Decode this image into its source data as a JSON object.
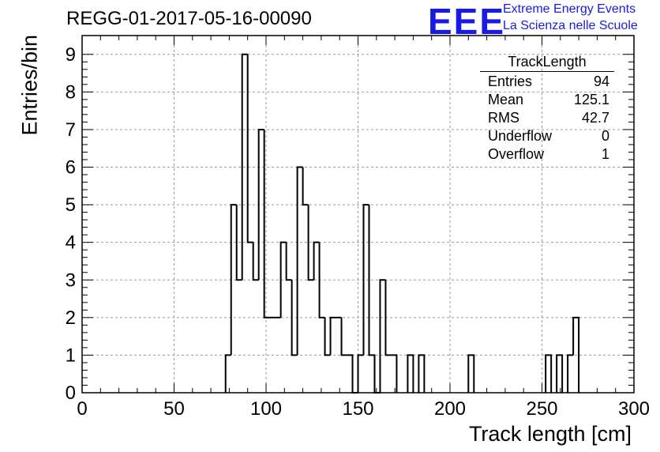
{
  "header": {
    "title": "REGG-01-2017-05-16-00090",
    "logo_text": "EEE",
    "logo_line1": "Extreme Energy Events",
    "logo_line2": "La Scienza nelle Scuole",
    "logo_color": "#1a1ae6"
  },
  "stats": {
    "title": "TrackLength",
    "rows": [
      {
        "label": "Entries",
        "value": "94"
      },
      {
        "label": "Mean",
        "value": "125.1"
      },
      {
        "label": "RMS",
        "value": "42.7"
      },
      {
        "label": "Underflow",
        "value": "0"
      },
      {
        "label": "Overflow",
        "value": "1"
      }
    ]
  },
  "chart_data": {
    "type": "histogram",
    "title": "REGG-01-2017-05-16-00090",
    "xlabel": "Track length [cm]",
    "ylabel": "Entries/bin",
    "xlim": [
      0,
      300
    ],
    "ylim": [
      0,
      9.5
    ],
    "bin_width": 3,
    "grid": true,
    "xticks": [
      0,
      50,
      100,
      150,
      200,
      250,
      300
    ],
    "yticks": [
      0,
      1,
      2,
      3,
      4,
      5,
      6,
      7,
      8,
      9
    ],
    "bins": [
      {
        "x0": 78,
        "count": 1
      },
      {
        "x0": 81,
        "count": 5
      },
      {
        "x0": 84,
        "count": 3
      },
      {
        "x0": 87,
        "count": 9
      },
      {
        "x0": 90,
        "count": 4
      },
      {
        "x0": 93,
        "count": 3
      },
      {
        "x0": 96,
        "count": 7
      },
      {
        "x0": 99,
        "count": 2
      },
      {
        "x0": 102,
        "count": 2
      },
      {
        "x0": 105,
        "count": 2
      },
      {
        "x0": 108,
        "count": 4
      },
      {
        "x0": 111,
        "count": 3
      },
      {
        "x0": 114,
        "count": 1
      },
      {
        "x0": 117,
        "count": 6
      },
      {
        "x0": 120,
        "count": 5
      },
      {
        "x0": 123,
        "count": 3
      },
      {
        "x0": 126,
        "count": 4
      },
      {
        "x0": 129,
        "count": 2
      },
      {
        "x0": 132,
        "count": 1
      },
      {
        "x0": 135,
        "count": 2
      },
      {
        "x0": 138,
        "count": 2
      },
      {
        "x0": 141,
        "count": 1
      },
      {
        "x0": 144,
        "count": 1
      },
      {
        "x0": 147,
        "count": 0
      },
      {
        "x0": 150,
        "count": 1
      },
      {
        "x0": 153,
        "count": 5
      },
      {
        "x0": 156,
        "count": 1
      },
      {
        "x0": 159,
        "count": 0
      },
      {
        "x0": 162,
        "count": 3
      },
      {
        "x0": 165,
        "count": 1
      },
      {
        "x0": 168,
        "count": 1
      },
      {
        "x0": 177,
        "count": 1
      },
      {
        "x0": 183,
        "count": 1
      },
      {
        "x0": 210,
        "count": 1
      },
      {
        "x0": 252,
        "count": 1
      },
      {
        "x0": 258,
        "count": 1
      },
      {
        "x0": 264,
        "count": 1
      },
      {
        "x0": 267,
        "count": 2
      }
    ]
  }
}
